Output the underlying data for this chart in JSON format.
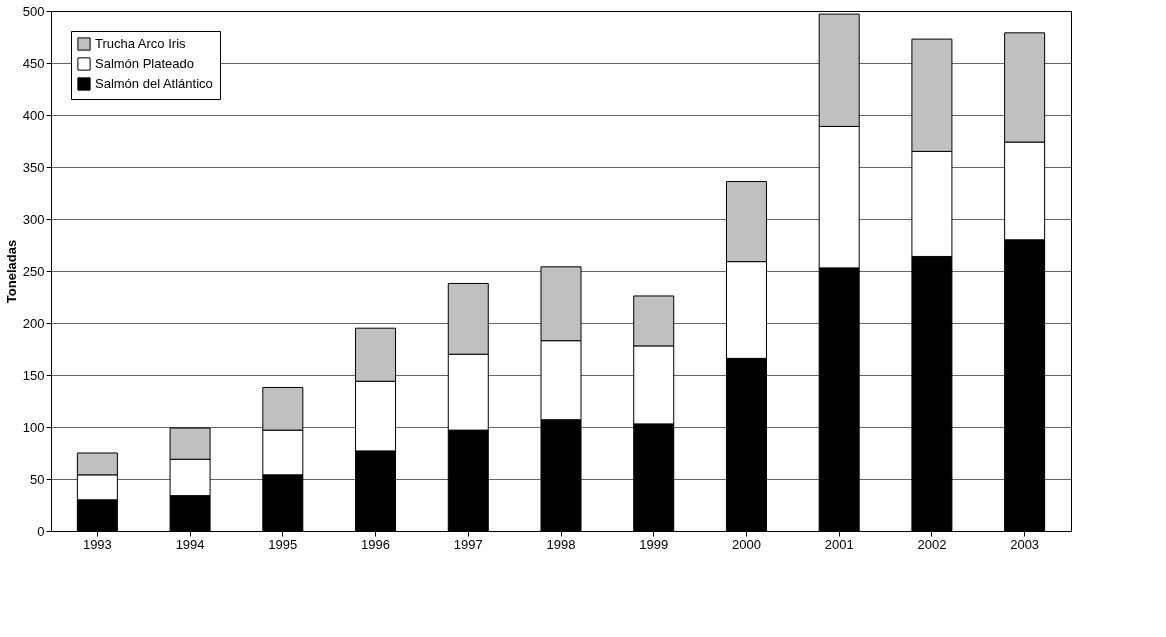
{
  "chart_data": {
    "type": "bar",
    "stacked": true,
    "ylabel": "Toneladas",
    "categories": [
      "1993",
      "1994",
      "1995",
      "1996",
      "1997",
      "1998",
      "1999",
      "2000",
      "2001",
      "2002",
      "2003"
    ],
    "series": [
      {
        "name": "Salmón del Atlántico",
        "color": "#000000",
        "values": [
          30,
          34,
          54,
          77,
          97,
          107,
          103,
          166,
          253,
          264,
          280
        ]
      },
      {
        "name": "Salmón Plateado",
        "color": "#ffffff",
        "values": [
          24,
          35,
          43,
          67,
          73,
          76,
          75,
          93,
          136,
          101,
          94
        ]
      },
      {
        "name": "Trucha Arco Iris",
        "color": "#c0c0c0",
        "values": [
          21,
          30,
          41,
          51,
          68,
          71,
          48,
          77,
          108,
          108,
          105
        ]
      }
    ],
    "ylim": [
      0,
      500
    ],
    "yticks": [
      0,
      50,
      100,
      150,
      200,
      250,
      300,
      350,
      400,
      450,
      500
    ],
    "grid": "y",
    "legend": "top left"
  }
}
